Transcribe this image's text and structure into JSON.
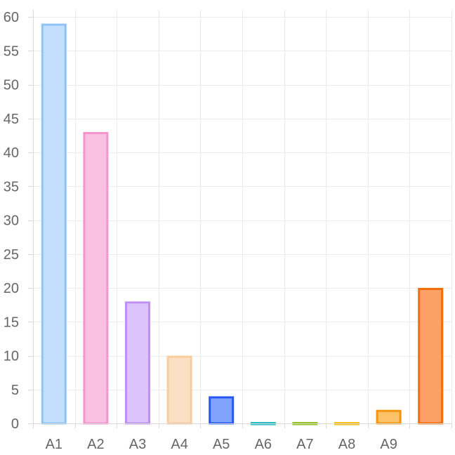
{
  "chart_data": {
    "type": "bar",
    "title": "",
    "xlabel": "",
    "ylabel": "",
    "ylim": [
      0,
      60
    ],
    "yticks": [
      0,
      5,
      10,
      15,
      20,
      25,
      30,
      35,
      40,
      45,
      50,
      55,
      60
    ],
    "grid": true,
    "legend": "none",
    "categories": [
      "A1",
      "A2",
      "A3",
      "A4",
      "A5",
      "A6",
      "A7",
      "A8",
      "A9",
      ""
    ],
    "values": [
      59,
      43,
      18,
      10,
      4,
      0,
      0,
      0,
      2,
      20
    ],
    "bar_colors": [
      {
        "fill": "#c3dffb",
        "stroke": "#90c4f7"
      },
      {
        "fill": "#fac0e2",
        "stroke": "#f195cc"
      },
      {
        "fill": "#dcc3fb",
        "stroke": "#c08ff5"
      },
      {
        "fill": "#fce0c4",
        "stroke": "#f9cc9d"
      },
      {
        "fill": "#80a3fd",
        "stroke": "#2757f4"
      },
      {
        "fill": "#7fd6d7",
        "stroke": "#25bcc3"
      },
      {
        "fill": "#c3de8c",
        "stroke": "#94c11a"
      },
      {
        "fill": "#fde18a",
        "stroke": "#fbc01a"
      },
      {
        "fill": "#fcc169",
        "stroke": "#f3940d"
      },
      {
        "fill": "#fda065",
        "stroke": "#f36d0b"
      }
    ]
  }
}
